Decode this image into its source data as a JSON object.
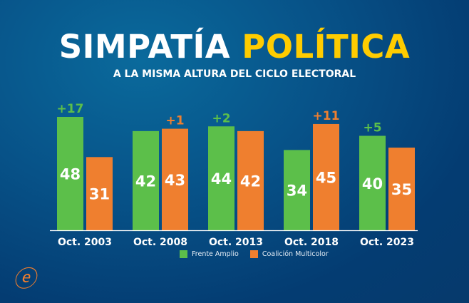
{
  "title_part1": "SIMPATÍA",
  "title_part2": "POLÍTICA",
  "subtitle": "A LA MISMA ALTURA DEL CICLO ELECTORAL",
  "logo_text": "e",
  "chart_data": {
    "type": "bar",
    "title": "SIMPATÍA POLÍTICA",
    "subtitle": "A LA MISMA ALTURA DEL CICLO ELECTORAL",
    "categories": [
      "Oct. 2003",
      "Oct. 2008",
      "Oct. 2013",
      "Oct. 2018",
      "Oct. 2023"
    ],
    "series": [
      {
        "name": "Frente Amplio",
        "values": [
          48,
          42,
          44,
          34,
          40
        ],
        "color": "#5cbf4a"
      },
      {
        "name": "Coalición Multicolor",
        "values": [
          31,
          43,
          42,
          45,
          35
        ],
        "color": "#ef7f2f"
      }
    ],
    "differences": [
      "+17",
      "+1",
      "+2",
      "+11",
      "+5"
    ],
    "ylim": [
      0,
      50
    ],
    "grid": false,
    "legend": "bottom-center",
    "xlabel": "",
    "ylabel": ""
  }
}
